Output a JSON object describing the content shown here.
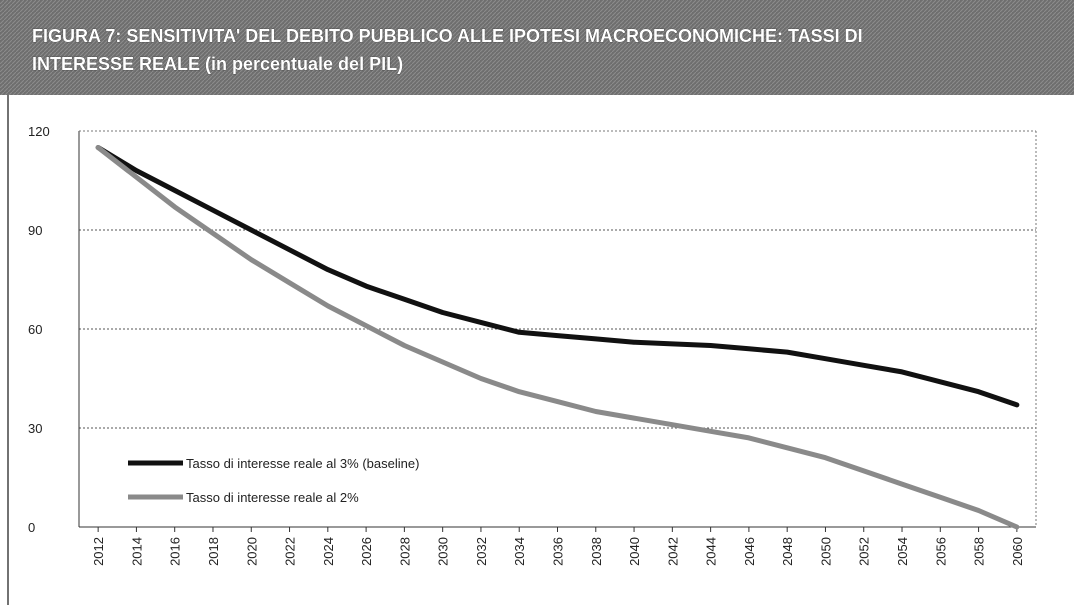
{
  "chart_data": {
    "type": "line",
    "title": [
      "FIGURA 7: SENSITIVITA' DEL DEBITO PUBBLICO ALLE IPOTESI MACROECONOMICHE: TASSI DI",
      "INTERESSE REALE (in percentuale del PIL)"
    ],
    "categories": [
      "2012",
      "2014",
      "2016",
      "2018",
      "2020",
      "2022",
      "2024",
      "2026",
      "2028",
      "2030",
      "2032",
      "2034",
      "2036",
      "2038",
      "2040",
      "2042",
      "2044",
      "2046",
      "2048",
      "2050",
      "2052",
      "2054",
      "2056",
      "2058",
      "2060"
    ],
    "series": [
      {
        "name": "Tasso di interesse reale al 3% (baseline)",
        "color": "#111111",
        "values": [
          115,
          108,
          102,
          96,
          90,
          84,
          78,
          73,
          69,
          65,
          62,
          59,
          58,
          57,
          56,
          55.5,
          55,
          54,
          53,
          51,
          49,
          47,
          44,
          41,
          37
        ]
      },
      {
        "name": "Tasso di interesse reale al 2%",
        "color": "#8a8a8a",
        "values": [
          115,
          106,
          97,
          89,
          81,
          74,
          67,
          61,
          55,
          50,
          45,
          41,
          38,
          35,
          33,
          31,
          29,
          27,
          24,
          21,
          17,
          13,
          9,
          5,
          0
        ]
      }
    ],
    "ylim": [
      0,
      120
    ],
    "yticks": [
      0,
      30,
      60,
      90,
      120
    ],
    "grid": true
  }
}
